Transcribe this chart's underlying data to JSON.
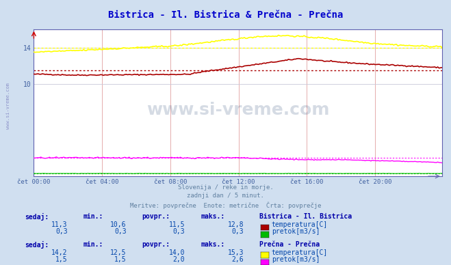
{
  "title": "Bistrica - Il. Bistrica & Prečna - Prečna",
  "title_color": "#0000cc",
  "bg_color": "#d0dff0",
  "plot_bg_color": "#ffffff",
  "grid_color": "#c8c8d8",
  "grid_color_v": "#e8c0c0",
  "xlabel_ticks": [
    "čet 00:00",
    "čet 04:00",
    "čet 08:00",
    "čet 12:00",
    "čet 16:00",
    "čet 20:00"
  ],
  "ytick_labels": [
    "10",
    "14"
  ],
  "ytick_vals": [
    10,
    14
  ],
  "axis_color": "#6060b0",
  "tick_color": "#4060a0",
  "subtitle_lines": [
    "Slovenija / reke in morje.",
    "zadnji dan / 5 minut.",
    "Meritve: povprečne  Enote: metrične  Črta: povprečje"
  ],
  "subtitle_color": "#6080a0",
  "watermark_text": "www.si-vreme.com",
  "watermark_color": "#1a3a6a",
  "watermark_alpha": 0.18,
  "n_points": 288,
  "bistrica_temp_avg": 11.5,
  "precna_temp_avg": 14.0,
  "bistrica_flow_avg": 0.3,
  "precna_flow_avg": 2.0,
  "color_bistrica_temp": "#aa0000",
  "color_bistrica_flow": "#00bb00",
  "color_precna_temp": "#ffff00",
  "color_precna_flow": "#ff00ff",
  "ymin": 0.0,
  "ymax": 16.0,
  "table_header_color": "#0000aa",
  "table_value_color": "#0044aa",
  "stat_bistrica": {
    "sedaj": "11,3",
    "min": "10,6",
    "povpr": "11,5",
    "maks": "12,8"
  },
  "stat_bistrica_flow": {
    "sedaj": "0,3",
    "min": "0,3",
    "povpr": "0,3",
    "maks": "0,3"
  },
  "stat_precna": {
    "sedaj": "14,2",
    "min": "12,5",
    "povpr": "14,0",
    "maks": "15,3"
  },
  "stat_precna_flow": {
    "sedaj": "1,5",
    "min": "1,5",
    "povpr": "2,0",
    "maks": "2,6"
  }
}
